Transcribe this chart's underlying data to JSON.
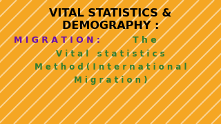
{
  "background_color": "#F5A623",
  "stripe_color": "#FFFFFF",
  "stripe_alpha": 0.5,
  "title_line1": "VITAL STATISTICS &",
  "title_line2": "DEMOGRAPHY :",
  "title_color": "#000000",
  "title_fontsize": 11.5,
  "migration_text": "M I G R A T I O N :  ",
  "the_text": "T h e",
  "migration_color": "#6A0DAD",
  "the_color": "#2E7D32",
  "mixed_fontsize": 9.0,
  "body_line1": "V i t a l   s t a t i s t i c s",
  "body_line2": "M e t h o d ( I n t e r n a t i o n a l",
  "body_line3": "M i g r a t i o n )",
  "body_color": "#2E7D32",
  "body_fontsize": 8.5
}
